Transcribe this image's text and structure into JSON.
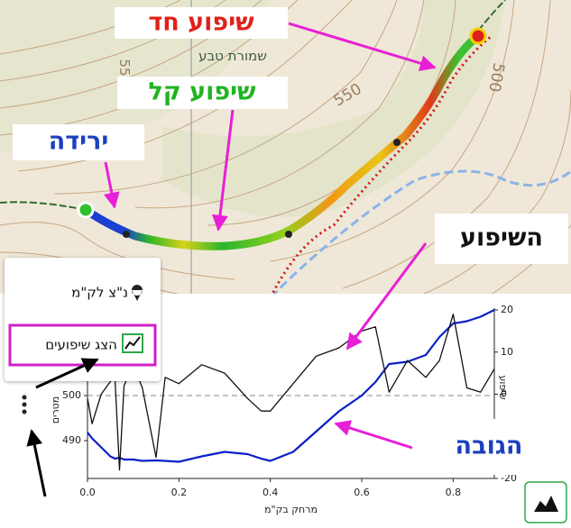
{
  "map": {
    "labels": [
      "שמורת טבע",
      "550",
      "500",
      "55"
    ]
  },
  "callouts": [
    {
      "text": "שיפוע חד",
      "color": "#e0201a"
    },
    {
      "text": "שיפוע קל",
      "color": "#1fb41f"
    },
    {
      "text": "ירידה",
      "color": "#1a3fc0"
    },
    {
      "text": "השיפוע",
      "color": "#111111"
    },
    {
      "text": "הגובה",
      "color": "#1a3fc0"
    }
  ],
  "menu": {
    "items": [
      "נ\"צ לק\"מ",
      "הצג שיפועים"
    ]
  },
  "chart_data": {
    "type": "line",
    "x": [
      0,
      0.01,
      0.03,
      0.05,
      0.06,
      0.07,
      0.08,
      0.1,
      0.12,
      0.15,
      0.17,
      0.2,
      0.25,
      0.3,
      0.35,
      0.38,
      0.4,
      0.45,
      0.5,
      0.55,
      0.6,
      0.63,
      0.66,
      0.7,
      0.74,
      0.77,
      0.8,
      0.83,
      0.86,
      0.89
    ],
    "series": [
      {
        "color": "#0a1fc8",
        "axis": "y",
        "values": [
          491.8,
          490.5,
          488.5,
          486.5,
          486,
          486.2,
          485.8,
          485.8,
          485.5,
          485.6,
          485.5,
          485.3,
          486.5,
          487.5,
          487,
          486,
          485.5,
          487.5,
          492,
          496.5,
          500,
          503,
          507,
          507.5,
          509,
          513,
          516,
          516.5,
          517.5,
          519
        ]
      },
      {
        "color": "#111111",
        "axis": "y2",
        "values": [
          -1,
          -7,
          0,
          3,
          4,
          -18,
          2,
          7,
          1.5,
          -15,
          4,
          2.5,
          7,
          5,
          -1,
          -4,
          -4,
          2.5,
          9,
          11,
          15,
          16,
          0.5,
          8,
          4,
          8,
          19,
          1.5,
          0.5,
          6
        ]
      }
    ],
    "xlabel": "מרחק בק\"מ",
    "ylabel": "מטרים",
    "y2label": "שיפוע",
    "xlim": [
      0,
      0.89
    ],
    "xticks": [
      {
        "value": 0,
        "label": "0.0"
      },
      0.2,
      0.4,
      0.6,
      0.8
    ],
    "ylim": [
      481.6,
      519
    ],
    "yticks": [
      490,
      500
    ],
    "y2lim": [
      -20,
      20
    ],
    "y2ticks": [
      -20,
      0,
      10,
      20
    ],
    "hline": 500
  }
}
